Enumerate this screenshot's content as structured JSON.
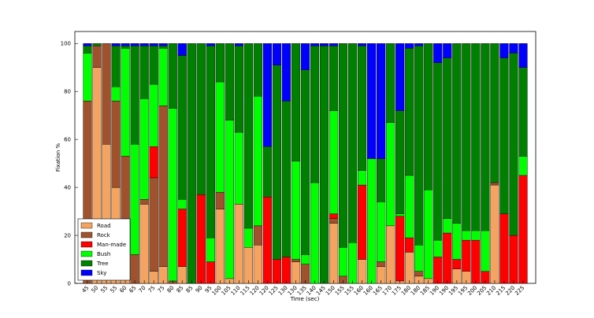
{
  "chart_data": {
    "type": "stacked_bar",
    "x_label": "Time (sec)",
    "y_label": "Fixation %",
    "categories": [
      "45",
      "50",
      "55",
      "55",
      "60",
      "65",
      "70",
      "75",
      "75",
      "80",
      "85",
      "85",
      "90",
      "95",
      "100",
      "105",
      "110",
      "115",
      "120",
      "120",
      "125",
      "130",
      "130",
      "135",
      "140",
      "145",
      "150",
      "155",
      "155",
      "160",
      "160",
      "165",
      "170",
      "175",
      "180",
      "180",
      "185",
      "190",
      "190",
      "195",
      "195",
      "200",
      "205",
      "210",
      "215",
      "220",
      "225"
    ],
    "ylim": [
      0,
      105
    ],
    "yticks": [
      0,
      20,
      40,
      60,
      80,
      100
    ],
    "legend": "lower left",
    "series": [
      {
        "name": "Road",
        "color": "#f4a460",
        "values": [
          0,
          90,
          58,
          40,
          27,
          0,
          33,
          5,
          7,
          0,
          7,
          0,
          0,
          0,
          31,
          2,
          33,
          15,
          16,
          0,
          0,
          0,
          9,
          0,
          0,
          0,
          25,
          0,
          0,
          10,
          0,
          7,
          24,
          1,
          13,
          3,
          2,
          0,
          0,
          6,
          5,
          0,
          0,
          41,
          0,
          0,
          0
        ]
      },
      {
        "name": "Rock",
        "color": "#a0522d",
        "values": [
          76,
          9,
          42,
          36,
          26,
          12,
          2,
          39,
          67,
          1,
          0,
          0,
          0,
          0,
          7,
          0,
          0,
          0,
          8,
          0,
          0,
          0,
          1,
          8,
          0,
          0,
          2,
          3,
          0,
          0,
          0,
          2,
          0,
          0,
          0,
          2,
          0,
          0,
          0,
          0,
          0,
          0,
          0,
          1,
          0,
          0,
          0
        ]
      },
      {
        "name": "Man-made",
        "color": "#ff0000",
        "values": [
          0,
          0,
          0,
          0,
          0,
          0,
          0,
          13,
          0,
          0,
          24,
          0,
          37,
          9,
          0,
          0,
          0,
          0,
          0,
          36,
          10,
          11,
          0,
          0,
          0,
          0,
          2,
          0,
          0,
          31,
          0,
          0,
          0,
          27,
          6,
          0,
          0,
          11,
          21,
          4,
          13,
          18,
          5,
          0,
          29,
          20,
          45
        ]
      },
      {
        "name": "Bush",
        "color": "#00ff00",
        "values": [
          20,
          0,
          0,
          6,
          45,
          46,
          42,
          26,
          24,
          72,
          4,
          0,
          0,
          10,
          46,
          66,
          30,
          8,
          54,
          0,
          0,
          0,
          41,
          4,
          42,
          0,
          43,
          12,
          17,
          6,
          52,
          25,
          43,
          1,
          26,
          11,
          37,
          7,
          6,
          15,
          4,
          4,
          17,
          0,
          0,
          0,
          8
        ]
      },
      {
        "name": "Tree",
        "color": "#008000",
        "values": [
          3,
          1,
          0,
          17,
          1,
          41,
          22,
          16,
          1,
          27,
          60,
          100,
          63,
          80,
          16,
          32,
          36,
          77,
          22,
          21,
          81,
          65,
          49,
          77,
          57,
          99,
          27,
          85,
          83,
          52,
          0,
          18,
          33,
          43,
          53,
          83,
          61,
          74,
          67,
          75,
          78,
          78,
          78,
          58,
          65,
          76,
          37
        ]
      },
      {
        "name": "Sky",
        "color": "#0000ff",
        "values": [
          1,
          0,
          0,
          1,
          1,
          1,
          1,
          1,
          1,
          0,
          5,
          0,
          0,
          1,
          0,
          0,
          1,
          0,
          0,
          43,
          9,
          24,
          0,
          11,
          1,
          1,
          1,
          0,
          0,
          1,
          48,
          48,
          0,
          28,
          2,
          1,
          0,
          8,
          6,
          0,
          0,
          0,
          0,
          0,
          6,
          4,
          10
        ]
      }
    ]
  }
}
